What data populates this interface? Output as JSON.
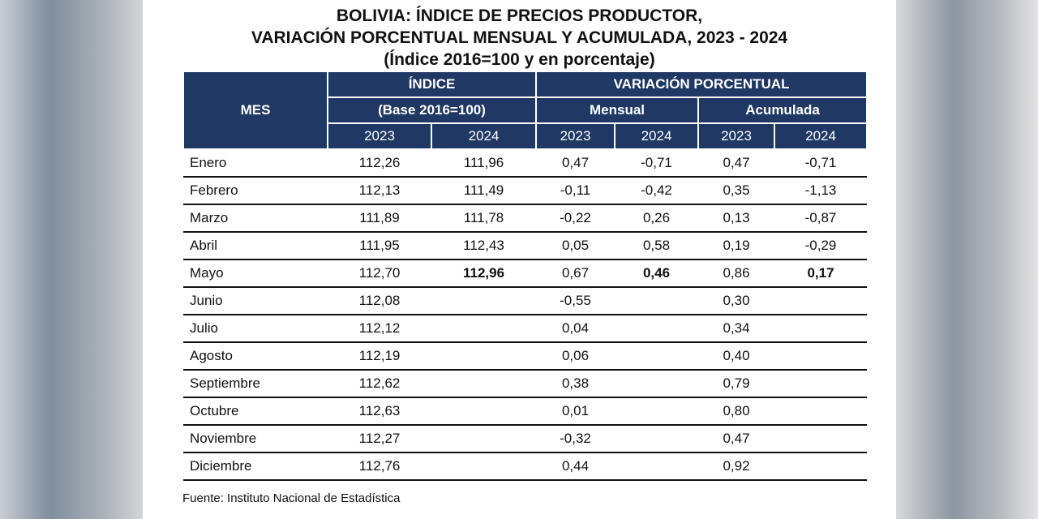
{
  "title": {
    "line1": "BOLIVIA: ÍNDICE DE PRECIOS PRODUCTOR,",
    "line2": "VARIACIÓN PORCENTUAL MENSUAL Y ACUMULADA, 2023 - 2024",
    "line3": "(Índice 2016=100 y en porcentaje)"
  },
  "header": {
    "mes": "MES",
    "indice": "ÍNDICE",
    "base": "(Base 2016=100)",
    "variacion": "VARIACIÓN PORCENTUAL",
    "mensual": "Mensual",
    "acumulada": "Acumulada",
    "years": [
      "2023",
      "2024",
      "2023",
      "2024",
      "2023",
      "2024"
    ]
  },
  "rows": [
    {
      "mes": "Enero",
      "i23": "112,26",
      "i24": "111,96",
      "m23": "0,47",
      "m24": "-0,71",
      "a23": "0,47",
      "a24": "-0,71"
    },
    {
      "mes": "Febrero",
      "i23": "112,13",
      "i24": "111,49",
      "m23": "-0,11",
      "m24": "-0,42",
      "a23": "0,35",
      "a24": "-1,13"
    },
    {
      "mes": "Marzo",
      "i23": "111,89",
      "i24": "111,78",
      "m23": "-0,22",
      "m24": "0,26",
      "a23": "0,13",
      "a24": "-0,87"
    },
    {
      "mes": "Abril",
      "i23": "111,95",
      "i24": "112,43",
      "m23": "0,05",
      "m24": "0,58",
      "a23": "0,19",
      "a24": "-0,29"
    },
    {
      "mes": "Mayo",
      "i23": "112,70",
      "i24": "112,96",
      "m23": "0,67",
      "m24": "0,46",
      "a23": "0,86",
      "a24": "0,17"
    },
    {
      "mes": "Junio",
      "i23": "112,08",
      "i24": "",
      "m23": "-0,55",
      "m24": "",
      "a23": "0,30",
      "a24": ""
    },
    {
      "mes": "Julio",
      "i23": "112,12",
      "i24": "",
      "m23": "0,04",
      "m24": "",
      "a23": "0,34",
      "a24": ""
    },
    {
      "mes": "Agosto",
      "i23": "112,19",
      "i24": "",
      "m23": "0,06",
      "m24": "",
      "a23": "0,40",
      "a24": ""
    },
    {
      "mes": "Septiembre",
      "i23": "112,62",
      "i24": "",
      "m23": "0,38",
      "m24": "",
      "a23": "0,79",
      "a24": ""
    },
    {
      "mes": "Octubre",
      "i23": "112,63",
      "i24": "",
      "m23": "0,01",
      "m24": "",
      "a23": "0,80",
      "a24": ""
    },
    {
      "mes": "Noviembre",
      "i23": "112,27",
      "i24": "",
      "m23": "-0,32",
      "m24": "",
      "a23": "0,47",
      "a24": ""
    },
    {
      "mes": "Diciembre",
      "i23": "112,76",
      "i24": "",
      "m23": "0,44",
      "m24": "",
      "a23": "0,92",
      "a24": ""
    }
  ],
  "source": "Fuente: Instituto Nacional de Estadística",
  "colors": {
    "header_bg": "#1f3864",
    "header_text": "#ffffff"
  }
}
